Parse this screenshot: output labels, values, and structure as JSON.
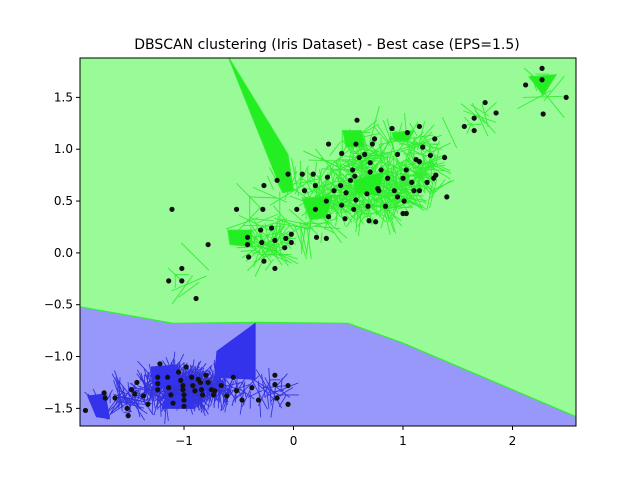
{
  "chart_data": {
    "type": "scatter",
    "title": "DBSCAN clustering (Iris Dataset) - Best case (EPS=1.5)",
    "xlabel": "",
    "ylabel": "",
    "xlim": [
      -1.95,
      2.58
    ],
    "ylim": [
      -1.67,
      1.88
    ],
    "x_ticks": [
      -1,
      0,
      1,
      2
    ],
    "x_tick_labels": [
      "−1",
      "0",
      "1",
      "2"
    ],
    "y_ticks": [
      -1.5,
      -1.0,
      -0.5,
      0.0,
      0.5,
      1.0,
      1.5
    ],
    "y_tick_labels": [
      "−1.5",
      "−1.0",
      "−0.5",
      "0.0",
      "0.5",
      "1.0",
      "1.5"
    ],
    "grid": false,
    "legend": "none",
    "regions": [
      {
        "cluster": "green",
        "fill": "#98fb98",
        "edge": "#33ee33",
        "dark_fill": "#22ee22"
      },
      {
        "cluster": "blue",
        "fill": "#9898fb",
        "edge": "#3333dd",
        "dark_fill": "#3333ee"
      }
    ],
    "boundary": [
      [
        -1.95,
        -0.52
      ],
      [
        -1.1,
        -0.68
      ],
      [
        -0.35,
        -0.67
      ],
      [
        0.5,
        -0.68
      ],
      [
        1.0,
        -0.87
      ],
      [
        2.58,
        -1.58
      ]
    ],
    "point_color": "#111111",
    "points": [
      [
        -1.9,
        -1.52
      ],
      [
        -1.73,
        -1.35
      ],
      [
        -1.72,
        -1.4
      ],
      [
        -1.63,
        -1.4
      ],
      [
        -1.52,
        -1.5
      ],
      [
        -1.51,
        -1.57
      ],
      [
        -1.48,
        -1.32
      ],
      [
        -1.45,
        -1.36
      ],
      [
        -1.43,
        -1.25
      ],
      [
        -1.37,
        -1.38
      ],
      [
        -1.33,
        -1.46
      ],
      [
        -1.24,
        -1.2
      ],
      [
        -1.24,
        -1.26
      ],
      [
        -1.24,
        -1.32
      ],
      [
        -1.22,
        -1.07
      ],
      [
        -1.15,
        -1.2
      ],
      [
        -1.14,
        -1.3
      ],
      [
        -1.12,
        -1.37
      ],
      [
        -1.1,
        -1.45
      ],
      [
        -1.05,
        -1.15
      ],
      [
        -1.03,
        -1.23
      ],
      [
        -1.01,
        -1.28
      ],
      [
        -1.01,
        -1.32
      ],
      [
        -1.0,
        -1.37
      ],
      [
        -1.0,
        -1.42
      ],
      [
        -1.0,
        -1.48
      ],
      [
        -0.98,
        -1.1
      ],
      [
        -0.93,
        -1.2
      ],
      [
        -0.92,
        -1.28
      ],
      [
        -0.9,
        -1.33
      ],
      [
        -0.87,
        -1.22
      ],
      [
        -0.85,
        -1.25
      ],
      [
        -0.84,
        -1.32
      ],
      [
        -0.83,
        -1.37
      ],
      [
        -0.8,
        -1.18
      ],
      [
        -0.78,
        -1.25
      ],
      [
        -0.75,
        -1.32
      ],
      [
        -0.73,
        -1.37
      ],
      [
        -0.72,
        -1.33
      ],
      [
        -0.66,
        -1.28
      ],
      [
        -0.61,
        -1.38
      ],
      [
        -0.55,
        -1.2
      ],
      [
        -0.52,
        -1.33
      ],
      [
        -0.47,
        -1.42
      ],
      [
        -0.38,
        -1.3
      ],
      [
        -0.32,
        -1.42
      ],
      [
        -0.17,
        -1.18
      ],
      [
        -0.17,
        -1.27
      ],
      [
        -0.15,
        -1.4
      ],
      [
        -0.05,
        -1.46
      ],
      [
        -0.05,
        -1.28
      ],
      [
        -1.14,
        -0.27
      ],
      [
        -1.11,
        0.42
      ],
      [
        -1.02,
        -0.15
      ],
      [
        -1.02,
        -0.27
      ],
      [
        -0.89,
        -0.44
      ],
      [
        -0.78,
        0.08
      ],
      [
        -0.52,
        0.42
      ],
      [
        -0.42,
        0.15
      ],
      [
        -0.42,
        0.08
      ],
      [
        -0.41,
        -0.04
      ],
      [
        -0.3,
        0.22
      ],
      [
        -0.29,
        0.1
      ],
      [
        -0.28,
        0.42
      ],
      [
        -0.27,
        -0.08
      ],
      [
        -0.27,
        0.65
      ],
      [
        -0.2,
        0.24
      ],
      [
        -0.17,
        0.12
      ],
      [
        -0.17,
        -0.15
      ],
      [
        -0.15,
        0.7
      ],
      [
        -0.08,
        0.05
      ],
      [
        -0.07,
        0.14
      ],
      [
        -0.05,
        0.76
      ],
      [
        -0.02,
        0.1
      ],
      [
        -0.02,
        0.18
      ],
      [
        0.03,
        0.42
      ],
      [
        0.08,
        0.76
      ],
      [
        0.1,
        0.6
      ],
      [
        0.18,
        0.76
      ],
      [
        0.2,
        0.42
      ],
      [
        0.2,
        0.65
      ],
      [
        0.21,
        0.15
      ],
      [
        0.3,
        0.5
      ],
      [
        0.3,
        0.14
      ],
      [
        0.31,
        0.73
      ],
      [
        0.32,
        0.35
      ],
      [
        0.32,
        1.05
      ],
      [
        0.37,
        0.6
      ],
      [
        0.43,
        0.65
      ],
      [
        0.44,
        0.46
      ],
      [
        0.44,
        0.96
      ],
      [
        0.47,
        0.33
      ],
      [
        0.48,
        0.58
      ],
      [
        0.52,
        0.7
      ],
      [
        0.54,
        0.8
      ],
      [
        0.55,
        0.42
      ],
      [
        0.56,
        0.74
      ],
      [
        0.57,
        0.51
      ],
      [
        0.57,
        1.05
      ],
      [
        0.58,
        1.28
      ],
      [
        0.6,
        0.92
      ],
      [
        0.65,
        0.95
      ],
      [
        0.67,
        0.57
      ],
      [
        0.68,
        0.45
      ],
      [
        0.69,
        0.31
      ],
      [
        0.7,
        0.78
      ],
      [
        0.7,
        0.87
      ],
      [
        0.72,
        1.05
      ],
      [
        0.74,
        1.1
      ],
      [
        0.75,
        0.3
      ],
      [
        0.77,
        0.62
      ],
      [
        0.78,
        0.6
      ],
      [
        0.8,
        0.8
      ],
      [
        0.84,
        0.45
      ],
      [
        0.86,
        0.72
      ],
      [
        0.9,
        1.2
      ],
      [
        0.92,
        0.6
      ],
      [
        0.95,
        0.54
      ],
      [
        0.95,
        0.95
      ],
      [
        1.0,
        0.72
      ],
      [
        1.0,
        0.38
      ],
      [
        1.01,
        0.5
      ],
      [
        1.03,
        0.8
      ],
      [
        1.03,
        0.38
      ],
      [
        1.04,
        1.16
      ],
      [
        1.08,
        0.68
      ],
      [
        1.1,
        0.6
      ],
      [
        1.12,
        0.9
      ],
      [
        1.15,
        1.22
      ],
      [
        1.15,
        0.88
      ],
      [
        1.15,
        0.6
      ],
      [
        1.18,
        1.02
      ],
      [
        1.22,
        0.68
      ],
      [
        1.25,
        0.94
      ],
      [
        1.28,
        0.72
      ],
      [
        1.29,
        1.1
      ],
      [
        1.3,
        0.75
      ],
      [
        1.38,
        0.92
      ],
      [
        1.4,
        0.54
      ],
      [
        1.56,
        1.22
      ],
      [
        1.65,
        1.3
      ],
      [
        1.65,
        1.18
      ],
      [
        1.75,
        1.45
      ],
      [
        1.85,
        1.35
      ],
      [
        2.12,
        1.62
      ],
      [
        2.27,
        1.67
      ],
      [
        2.27,
        1.78
      ],
      [
        2.28,
        1.34
      ],
      [
        2.49,
        1.5
      ]
    ]
  }
}
